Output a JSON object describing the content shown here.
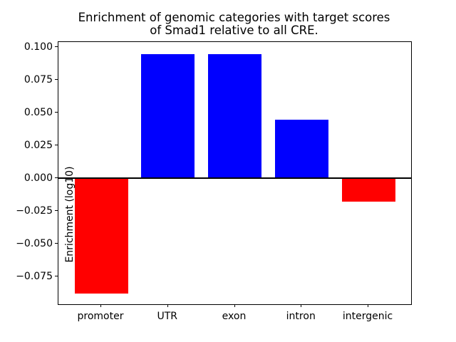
{
  "chart_data": {
    "type": "bar",
    "title_lines": [
      "Enrichment of genomic categories with target scores",
      "of Smad1 relative to all CRE."
    ],
    "title": "Enrichment of genomic categories with target scores of Smad1 relative to all CRE.",
    "xlabel": "",
    "ylabel": "Enrichment (log10)",
    "categories": [
      "promoter",
      "UTR",
      "exon",
      "intron",
      "intergenic"
    ],
    "values": [
      -0.088,
      0.095,
      0.095,
      0.045,
      -0.018
    ],
    "bar_colors": [
      "#ff0000",
      "#0000ff",
      "#0000ff",
      "#0000ff",
      "#ff0000"
    ],
    "positive_color": "#0000ff",
    "negative_color": "#ff0000",
    "zero_line_color": "#000000",
    "ylim": [
      -0.096,
      0.104
    ],
    "yticks": [
      0.1,
      0.075,
      0.05,
      0.025,
      0.0,
      -0.025,
      -0.05,
      -0.075
    ],
    "ytick_labels": [
      "0.100",
      "0.075",
      "0.050",
      "0.025",
      "0.000",
      "−0.025",
      "−0.050",
      "−0.075"
    ],
    "bar_width_fraction": 0.8,
    "grid": false,
    "legend": null,
    "zero_line": true
  }
}
